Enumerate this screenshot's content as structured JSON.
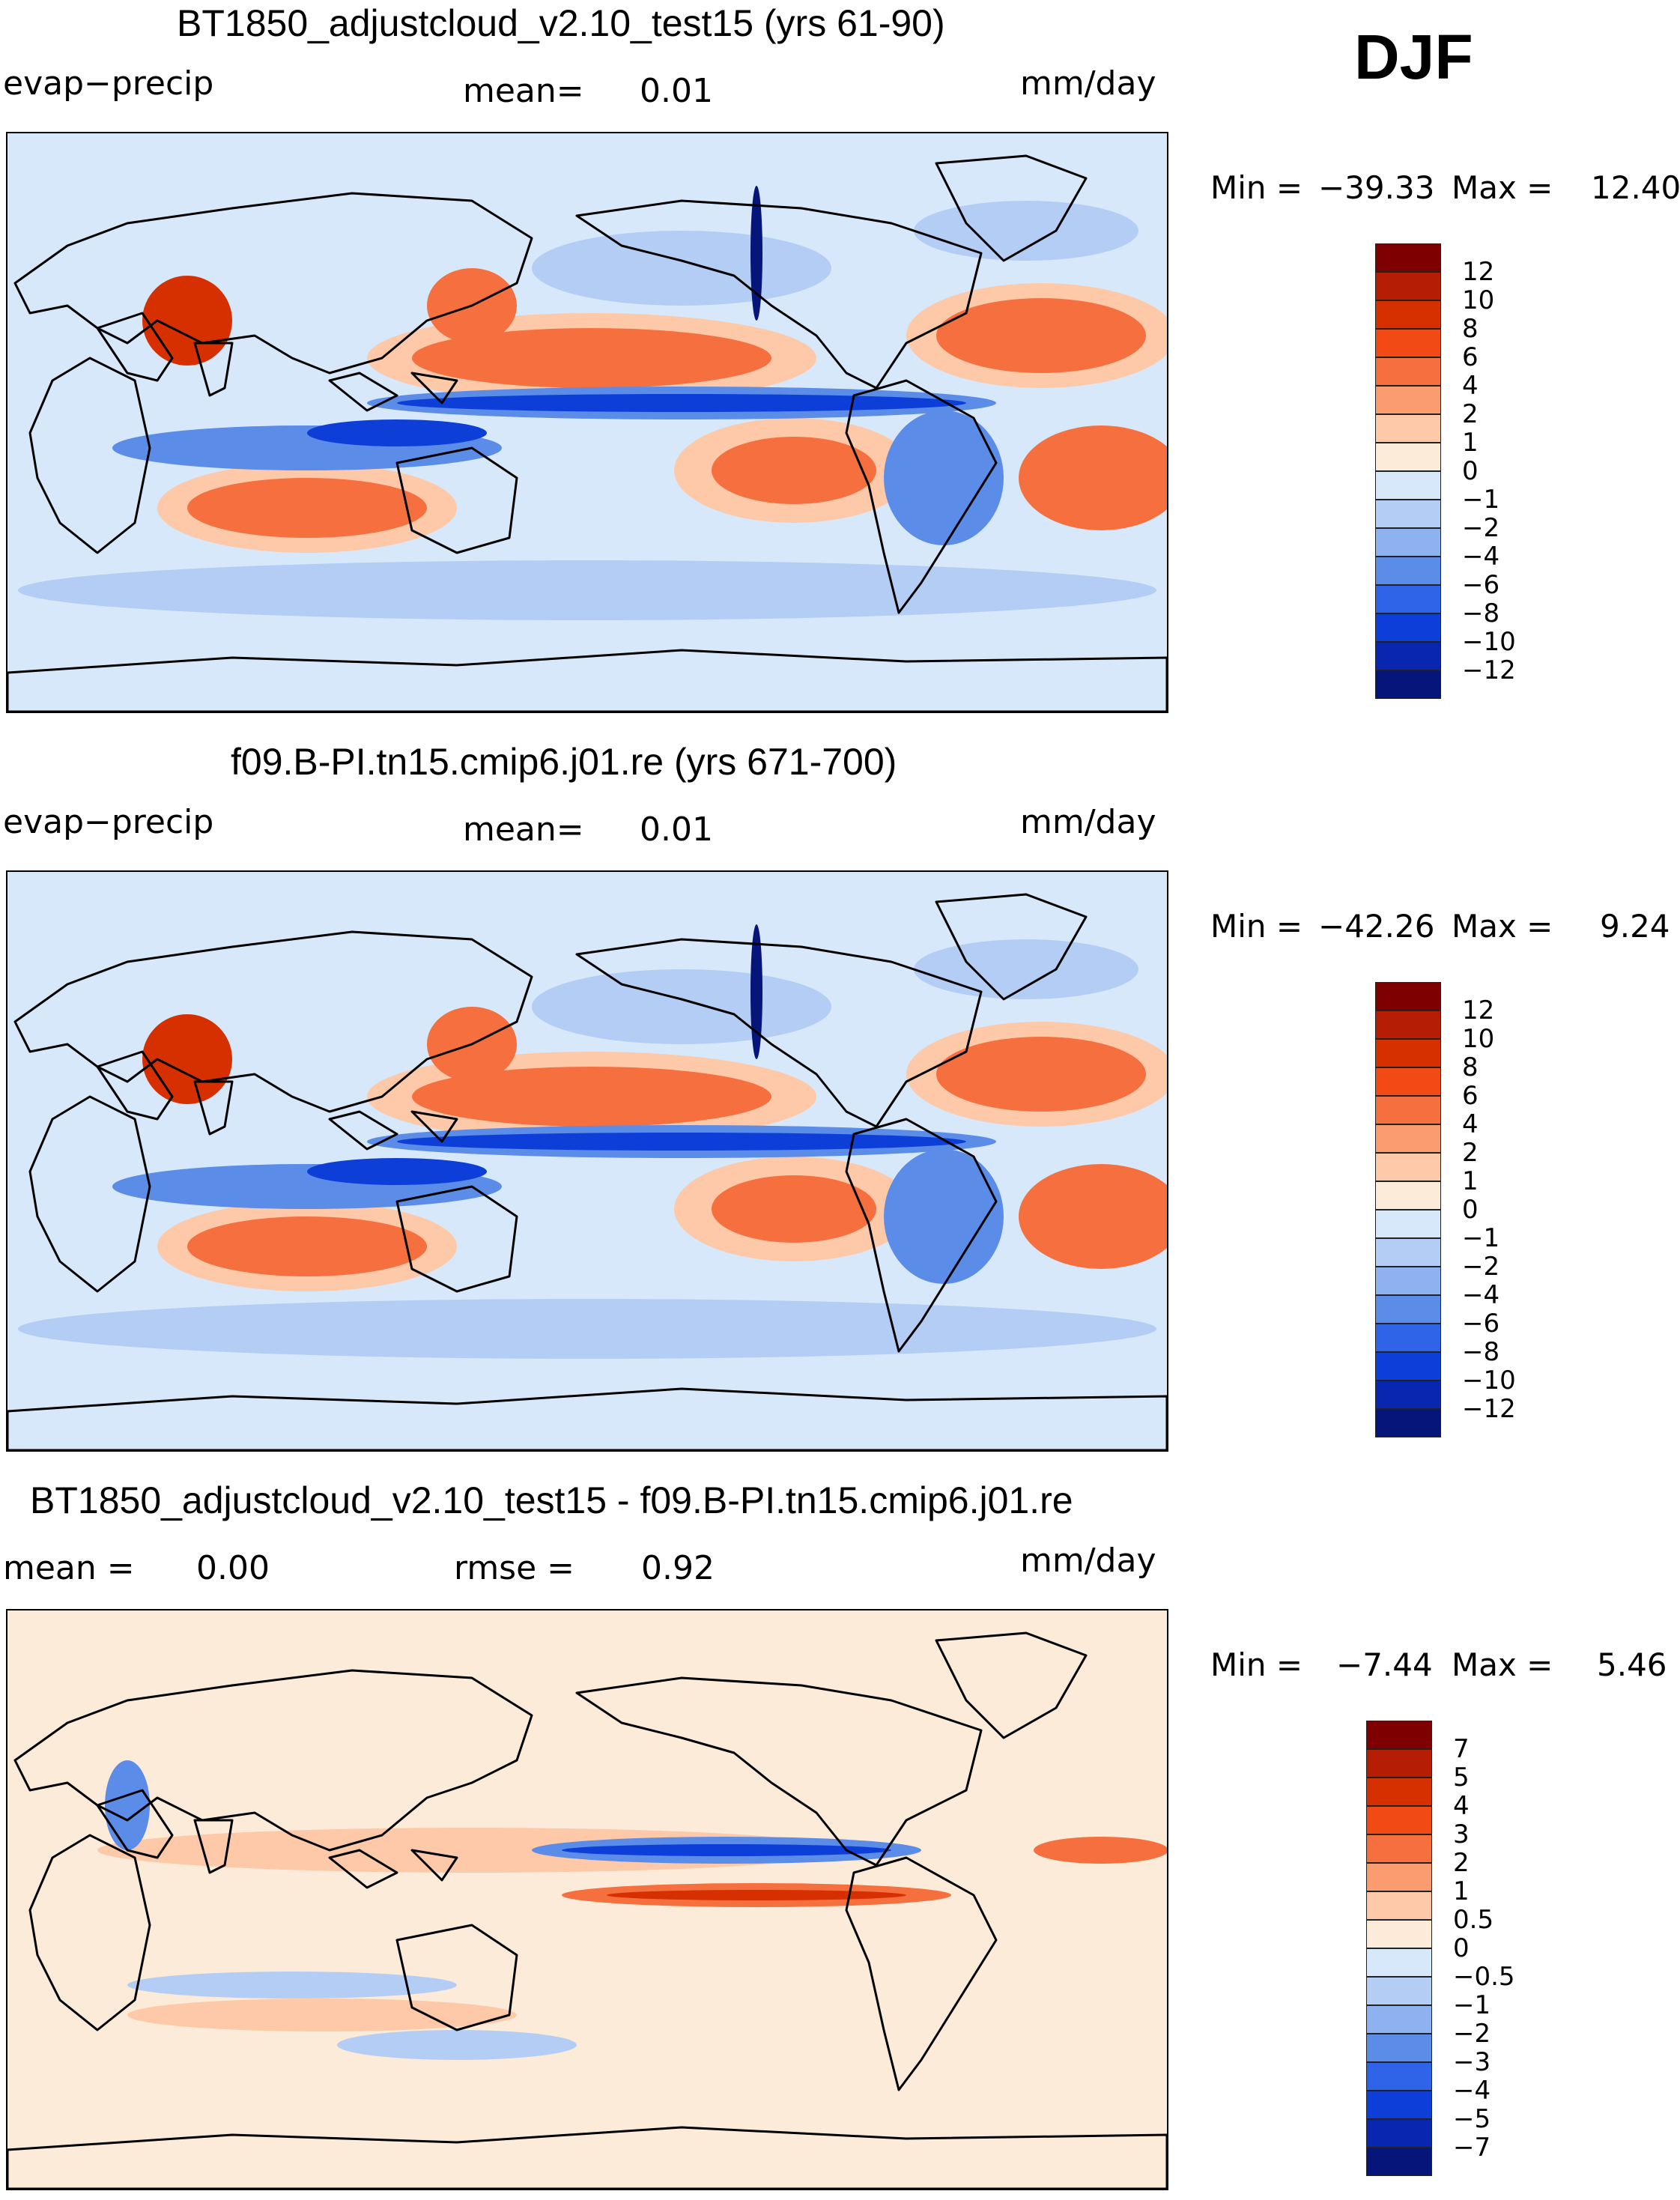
{
  "season": "DJF",
  "panels": [
    {
      "title": "BT1850_adjustcloud_v2.10_test15 (yrs 61-90)",
      "left_label": "evap−precip",
      "center_label": "mean=",
      "center_value": "0.01",
      "units": "mm/day",
      "min_label": "Min =",
      "min_value": "−39.33",
      "max_label": "Max =",
      "max_value": "12.40",
      "colorbar": {
        "ticks": [
          "12",
          "10",
          "8",
          "6",
          "4",
          "2",
          "1",
          "0",
          "−1",
          "−2",
          "−4",
          "−6",
          "−8",
          "−10",
          "−12"
        ],
        "colors": [
          "#7f0000",
          "#b51e04",
          "#d73000",
          "#f24a14",
          "#f66f3e",
          "#fa9b70",
          "#fdc9a8",
          "#fdebd9",
          "#d7e8fb",
          "#b4cdf5",
          "#8eb2f0",
          "#5b8ce8",
          "#2f64e8",
          "#0d3fd8",
          "#0826b0",
          "#06157a"
        ]
      }
    },
    {
      "title": "f09.B-PI.tn15.cmip6.j01.re (yrs 671-700)",
      "left_label": "evap−precip",
      "center_label": "mean=",
      "center_value": "0.01",
      "units": "mm/day",
      "min_label": "Min =",
      "min_value": "−42.26",
      "max_label": "Max =",
      "max_value": "9.24",
      "colorbar": {
        "ticks": [
          "12",
          "10",
          "8",
          "6",
          "4",
          "2",
          "1",
          "0",
          "−1",
          "−2",
          "−4",
          "−6",
          "−8",
          "−10",
          "−12"
        ],
        "colors": [
          "#7f0000",
          "#b51e04",
          "#d73000",
          "#f24a14",
          "#f66f3e",
          "#fa9b70",
          "#fdc9a8",
          "#fdebd9",
          "#d7e8fb",
          "#b4cdf5",
          "#8eb2f0",
          "#5b8ce8",
          "#2f64e8",
          "#0d3fd8",
          "#0826b0",
          "#06157a"
        ]
      }
    },
    {
      "title": "BT1850_adjustcloud_v2.10_test15 - f09.B-PI.tn15.cmip6.j01.re",
      "left_label": "mean =",
      "left_value": "0.00",
      "center_label": "rmse =",
      "center_value": "0.92",
      "units": "mm/day",
      "min_label": "Min =",
      "min_value": "−7.44",
      "max_label": "Max =",
      "max_value": "5.46",
      "colorbar": {
        "ticks": [
          "7",
          "5",
          "4",
          "3",
          "2",
          "1",
          "0.5",
          "0",
          "−0.5",
          "−1",
          "−2",
          "−3",
          "−4",
          "−5",
          "−7"
        ],
        "colors": [
          "#7f0000",
          "#b51e04",
          "#d73000",
          "#f24a14",
          "#f66f3e",
          "#fa9b70",
          "#fdc9a8",
          "#fdebd9",
          "#d7e8fb",
          "#b4cdf5",
          "#8eb2f0",
          "#5b8ce8",
          "#2f64e8",
          "#0d3fd8",
          "#0826b0",
          "#06157a"
        ]
      }
    }
  ],
  "map_colors": {
    "ocean_base": "#d7e8fb",
    "diff_base": "#fdebd9",
    "pos_light": "#fdc9a8",
    "pos_mid": "#f66f3e",
    "pos_strong": "#d73000",
    "neg_light": "#b4cdf5",
    "neg_mid": "#5b8ce8",
    "neg_strong": "#0d3fd8",
    "neg_deep": "#06157a",
    "coast": "#000000"
  }
}
